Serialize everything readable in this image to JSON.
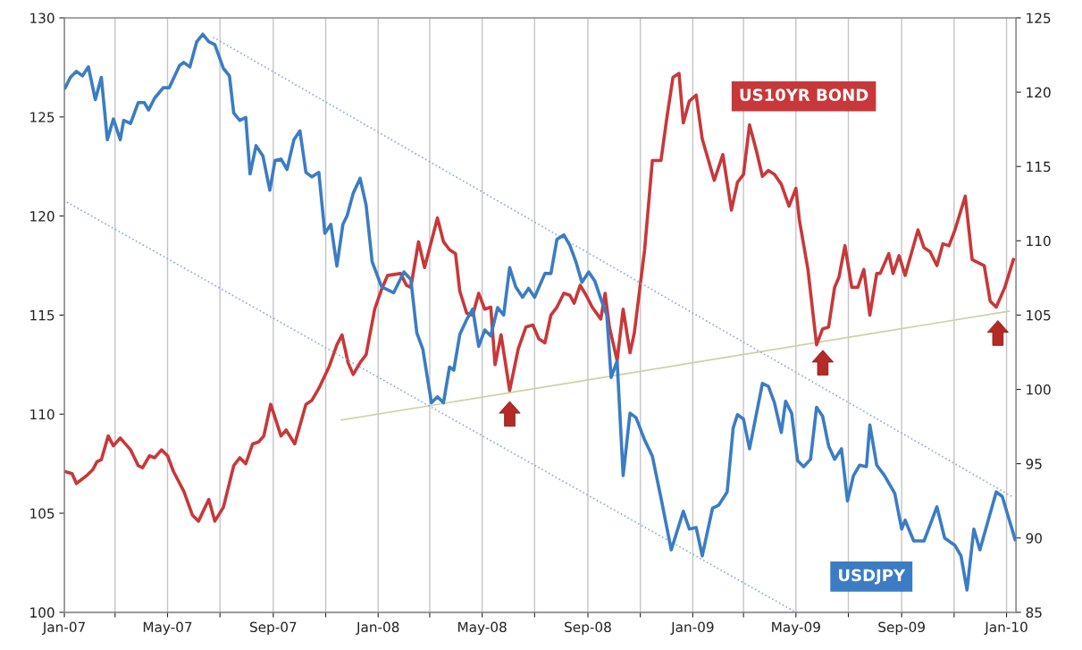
{
  "chart_data": {
    "type": "line",
    "grid": "x",
    "xlim": [
      "2007-01-01",
      "2010-01-12"
    ],
    "xticks": [
      {
        "value": "2007-01-01",
        "label": "Jan-07"
      },
      {
        "value": "2007-03-01",
        "label": null
      },
      {
        "value": "2007-05-01",
        "label": "May-07"
      },
      {
        "value": "2007-07-01",
        "label": null
      },
      {
        "value": "2007-09-01",
        "label": "Sep-07"
      },
      {
        "value": "2007-11-01",
        "label": null
      },
      {
        "value": "2008-01-01",
        "label": "Jan-08"
      },
      {
        "value": "2008-03-01",
        "label": null
      },
      {
        "value": "2008-05-01",
        "label": "May-08"
      },
      {
        "value": "2008-07-01",
        "label": null
      },
      {
        "value": "2008-09-01",
        "label": "Sep-08"
      },
      {
        "value": "2008-11-01",
        "label": null
      },
      {
        "value": "2009-01-01",
        "label": "Jan-09"
      },
      {
        "value": "2009-03-01",
        "label": null
      },
      {
        "value": "2009-05-01",
        "label": "May-09"
      },
      {
        "value": "2009-07-01",
        "label": null
      },
      {
        "value": "2009-09-01",
        "label": "Sep-09"
      },
      {
        "value": "2009-11-01",
        "label": null
      },
      {
        "value": "2010-01-01",
        "label": "Jan-10"
      }
    ],
    "ylim": [
      100,
      130
    ],
    "yticks": [
      100,
      105,
      110,
      115,
      120,
      125,
      130
    ],
    "y2lim": [
      85,
      125
    ],
    "y2ticks": [
      85,
      90,
      95,
      100,
      105,
      110,
      115,
      120,
      125
    ],
    "series": [
      {
        "name": "US10YR BOND",
        "color": "#c8383a",
        "axis": "y",
        "x": [
          "2007-01-02",
          "2007-01-10",
          "2007-01-15",
          "2007-01-27",
          "2007-02-03",
          "2007-02-08",
          "2007-02-13",
          "2007-02-21",
          "2007-02-27",
          "2007-03-07",
          "2007-03-19",
          "2007-03-28",
          "2007-04-02",
          "2007-04-10",
          "2007-04-16",
          "2007-04-24",
          "2007-05-01",
          "2007-05-08",
          "2007-05-20",
          "2007-05-30",
          "2007-06-06",
          "2007-06-18",
          "2007-06-25",
          "2007-07-05",
          "2007-07-17",
          "2007-07-24",
          "2007-07-31",
          "2007-08-08",
          "2007-08-15",
          "2007-08-21",
          "2007-08-29",
          "2007-09-10",
          "2007-09-16",
          "2007-09-26",
          "2007-10-09",
          "2007-10-16",
          "2007-10-24",
          "2007-11-05",
          "2007-11-14",
          "2007-11-20",
          "2007-11-27",
          "2007-12-03",
          "2007-12-11",
          "2007-12-18",
          "2007-12-28",
          "2008-01-05",
          "2008-01-12",
          "2008-01-27",
          "2008-02-03",
          "2008-02-08",
          "2008-02-17",
          "2008-02-24",
          "2008-03-10",
          "2008-03-17",
          "2008-03-24",
          "2008-03-31",
          "2008-04-05",
          "2008-04-13",
          "2008-04-20",
          "2008-04-27",
          "2008-05-04",
          "2008-05-11",
          "2008-05-16",
          "2008-05-23",
          "2008-06-02",
          "2008-06-12",
          "2008-06-21",
          "2008-06-29",
          "2008-07-06",
          "2008-07-13",
          "2008-07-20",
          "2008-07-27",
          "2008-08-04",
          "2008-08-11",
          "2008-08-16",
          "2008-08-23",
          "2008-08-30",
          "2008-09-06",
          "2008-09-16",
          "2008-09-21",
          "2008-09-26",
          "2008-10-05",
          "2008-10-12",
          "2008-10-20",
          "2008-10-25",
          "2008-11-06",
          "2008-11-15",
          "2008-11-25",
          "2008-12-02",
          "2008-12-09",
          "2008-12-16",
          "2008-12-21",
          "2008-12-28",
          "2009-01-05",
          "2009-01-12",
          "2009-01-26",
          "2009-02-05",
          "2009-02-15",
          "2009-02-22",
          "2009-03-01",
          "2009-03-08",
          "2009-03-16",
          "2009-03-23",
          "2009-03-30",
          "2009-04-06",
          "2009-04-14",
          "2009-04-23",
          "2009-05-01",
          "2009-05-05",
          "2009-05-15",
          "2009-05-25",
          "2009-06-01",
          "2009-06-08",
          "2009-06-15",
          "2009-06-20",
          "2009-06-27",
          "2009-07-05",
          "2009-07-12",
          "2009-07-19",
          "2009-07-26",
          "2009-08-03",
          "2009-08-07",
          "2009-08-17",
          "2009-08-22",
          "2009-08-29",
          "2009-09-05",
          "2009-09-20",
          "2009-09-27",
          "2009-10-04",
          "2009-10-12",
          "2009-10-19",
          "2009-10-26",
          "2009-11-02",
          "2009-11-14",
          "2009-11-22",
          "2009-12-06",
          "2009-12-13",
          "2009-12-20",
          "2009-12-30",
          "2010-01-09"
        ],
        "values": [
          107.1,
          107.0,
          106.5,
          106.9,
          107.2,
          107.6,
          107.7,
          108.9,
          108.4,
          108.8,
          108.2,
          107.4,
          107.3,
          107.9,
          107.8,
          108.2,
          107.9,
          107.1,
          106.1,
          104.9,
          104.6,
          105.7,
          104.6,
          105.3,
          107.4,
          107.8,
          107.5,
          108.5,
          108.6,
          108.9,
          110.5,
          108.9,
          109.2,
          108.5,
          110.5,
          110.7,
          111.3,
          112.4,
          113.5,
          114.0,
          112.6,
          112.0,
          112.6,
          113.0,
          115.3,
          116.3,
          117.0,
          117.1,
          116.5,
          116.4,
          118.7,
          117.4,
          119.9,
          118.7,
          118.3,
          118.1,
          116.2,
          115.1,
          115.0,
          116.1,
          115.3,
          115.4,
          112.5,
          114.0,
          111.2,
          113.3,
          114.4,
          114.5,
          113.8,
          113.6,
          115.0,
          115.4,
          116.1,
          116.0,
          115.6,
          116.5,
          116.0,
          115.4,
          114.8,
          116.1,
          114.4,
          112.7,
          115.3,
          113.1,
          114.1,
          118.3,
          122.8,
          122.8,
          125.0,
          127.0,
          127.2,
          124.7,
          125.8,
          126.1,
          123.9,
          121.8,
          123.1,
          120.3,
          121.7,
          122.1,
          124.6,
          123.3,
          122.0,
          122.3,
          122.1,
          121.6,
          120.5,
          121.4,
          119.8,
          117.3,
          113.5,
          114.3,
          114.4,
          116.4,
          116.9,
          118.5,
          116.4,
          116.4,
          117.3,
          115.0,
          117.1,
          117.1,
          118.1,
          117.1,
          118.0,
          117.0,
          119.3,
          118.4,
          118.2,
          117.5,
          118.6,
          118.5,
          119.3,
          121.0,
          117.8,
          117.5,
          115.7,
          115.4,
          116.4,
          117.8
        ]
      },
      {
        "name": "USDJPY",
        "color": "#3b7cc4",
        "axis": "y2",
        "x": [
          "2007-01-02",
          "2007-01-08",
          "2007-01-15",
          "2007-01-22",
          "2007-01-29",
          "2007-02-06",
          "2007-02-13",
          "2007-02-20",
          "2007-02-27",
          "2007-03-07",
          "2007-03-11",
          "2007-03-19",
          "2007-03-28",
          "2007-04-04",
          "2007-04-09",
          "2007-04-16",
          "2007-04-26",
          "2007-05-03",
          "2007-05-15",
          "2007-05-20",
          "2007-05-27",
          "2007-06-04",
          "2007-06-11",
          "2007-06-18",
          "2007-06-25",
          "2007-07-05",
          "2007-07-12",
          "2007-07-17",
          "2007-07-24",
          "2007-07-31",
          "2007-08-05",
          "2007-08-12",
          "2007-08-20",
          "2007-08-28",
          "2007-09-03",
          "2007-09-10",
          "2007-09-17",
          "2007-09-25",
          "2007-10-02",
          "2007-10-09",
          "2007-10-16",
          "2007-10-24",
          "2007-10-31",
          "2007-11-07",
          "2007-11-14",
          "2007-11-21",
          "2007-11-26",
          "2007-12-03",
          "2007-12-11",
          "2007-12-18",
          "2007-12-25",
          "2008-01-05",
          "2008-01-19",
          "2008-01-31",
          "2008-02-08",
          "2008-02-15",
          "2008-02-22",
          "2008-03-03",
          "2008-03-10",
          "2008-03-17",
          "2008-03-24",
          "2008-03-29",
          "2008-04-05",
          "2008-04-13",
          "2008-04-20",
          "2008-04-27",
          "2008-05-04",
          "2008-05-11",
          "2008-05-19",
          "2008-05-26",
          "2008-06-02",
          "2008-06-09",
          "2008-06-17",
          "2008-06-24",
          "2008-07-01",
          "2008-07-13",
          "2008-07-20",
          "2008-07-27",
          "2008-08-04",
          "2008-08-11",
          "2008-08-18",
          "2008-08-25",
          "2008-09-02",
          "2008-09-09",
          "2008-09-16",
          "2008-09-23",
          "2008-09-28",
          "2008-10-05",
          "2008-10-12",
          "2008-10-20",
          "2008-10-27",
          "2008-11-06",
          "2008-11-15",
          "2008-11-25",
          "2008-12-07",
          "2008-12-21",
          "2008-12-28",
          "2009-01-05",
          "2009-01-12",
          "2009-01-24",
          "2009-01-31",
          "2009-02-10",
          "2009-02-17",
          "2009-02-22",
          "2009-03-01",
          "2009-03-08",
          "2009-03-23",
          "2009-03-30",
          "2009-04-06",
          "2009-04-14",
          "2009-04-19",
          "2009-04-26",
          "2009-05-03",
          "2009-05-10",
          "2009-05-18",
          "2009-05-25",
          "2009-06-01",
          "2009-06-08",
          "2009-06-15",
          "2009-06-23",
          "2009-06-30",
          "2009-07-07",
          "2009-07-14",
          "2009-07-22",
          "2009-07-26",
          "2009-08-03",
          "2009-08-12",
          "2009-08-24",
          "2009-09-01",
          "2009-09-05",
          "2009-09-15",
          "2009-09-27",
          "2009-10-12",
          "2009-10-21",
          "2009-11-02",
          "2009-11-09",
          "2009-11-16",
          "2009-11-24",
          "2009-12-01",
          "2009-12-20",
          "2009-12-27",
          "2010-01-11"
        ],
        "values": [
          120.3,
          121.0,
          121.4,
          121.1,
          121.7,
          119.5,
          121.0,
          116.8,
          118.2,
          116.8,
          118.1,
          117.9,
          119.3,
          119.3,
          118.8,
          119.6,
          120.3,
          120.3,
          121.8,
          122.0,
          121.7,
          123.4,
          123.9,
          123.4,
          123.2,
          121.6,
          121.1,
          118.6,
          118.1,
          118.3,
          114.5,
          116.4,
          115.7,
          113.4,
          115.4,
          115.5,
          114.8,
          116.8,
          117.4,
          114.6,
          114.3,
          114.6,
          110.5,
          111.1,
          108.3,
          111.1,
          111.7,
          113.2,
          114.2,
          112.4,
          108.6,
          106.9,
          106.5,
          107.9,
          107.4,
          103.8,
          102.7,
          99.1,
          99.5,
          99.1,
          101.5,
          101.3,
          103.7,
          104.7,
          105.4,
          102.9,
          104.0,
          103.6,
          105.5,
          105.0,
          108.2,
          106.9,
          106.2,
          106.8,
          106.2,
          107.8,
          107.8,
          110.1,
          110.4,
          109.7,
          108.6,
          107.2,
          107.9,
          107.3,
          106.1,
          105.0,
          100.8,
          101.9,
          94.2,
          98.4,
          98.1,
          96.6,
          95.5,
          92.7,
          89.2,
          91.8,
          90.6,
          90.7,
          88.8,
          92.0,
          92.2,
          93.1,
          97.4,
          98.3,
          98.0,
          96.0,
          100.4,
          100.2,
          99.1,
          97.1,
          99.2,
          98.4,
          95.2,
          94.8,
          95.3,
          98.8,
          98.2,
          96.2,
          95.3,
          96.0,
          92.5,
          94.2,
          94.9,
          94.8,
          97.6,
          94.9,
          94.2,
          93.0,
          90.6,
          91.2,
          89.8,
          89.8,
          92.1,
          90.0,
          89.5,
          88.8,
          86.5,
          90.6,
          89.2,
          93.1,
          92.8,
          89.9
        ]
      },
      {
        "color": "#8eaadb",
        "axis": "y2",
        "line_style": "dotted",
        "x": [
          "2007-06-23",
          "2010-01-07"
        ],
        "values": [
          123.7,
          92.8
        ]
      },
      {
        "color": "#8eaadb",
        "axis": "y2",
        "line_style": "dotted",
        "x": [
          "2007-01-04",
          "2009-05-01"
        ],
        "values": [
          112.6,
          85.0
        ]
      },
      {
        "color": "#c9d3a5",
        "axis": "y",
        "line_style": "solid",
        "x": [
          "2007-11-19",
          "2010-01-04"
        ],
        "values": [
          109.7,
          115.2
        ]
      }
    ]
  }
}
